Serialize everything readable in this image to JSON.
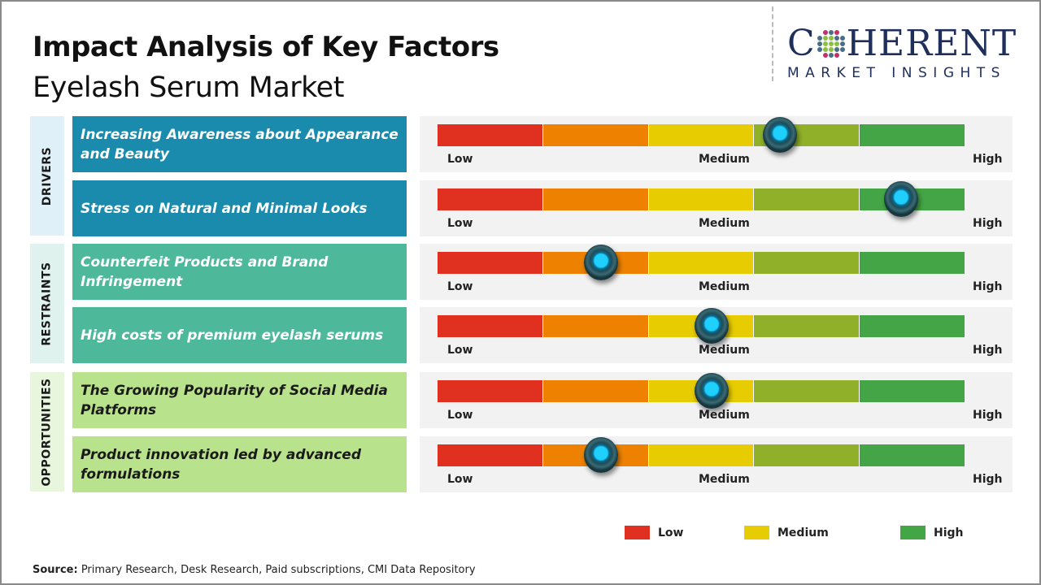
{
  "header": {
    "title": "Impact Analysis of Key Factors",
    "subtitle": "Eyelash Serum Market"
  },
  "logo": {
    "main_left": "C",
    "main_right": "HERENT",
    "sub": "MARKET INSIGHTS"
  },
  "scale_labels": {
    "low": "Low",
    "medium": "Medium",
    "high": "High"
  },
  "scale_colors": [
    "#e03020",
    "#ee8200",
    "#e6cc00",
    "#8fb028",
    "#43a545"
  ],
  "categories": [
    {
      "label": "DRIVERS",
      "color": "#dff0f8"
    },
    {
      "label": "RESTRAINTS",
      "color": "#e0f2ee"
    },
    {
      "label": "OPPORTUNITIES",
      "color": "#e8f6de"
    }
  ],
  "factors": [
    {
      "text": "Increasing Awareness about Appearance and Beauty",
      "category": "DRIVERS",
      "impact": 0.65
    },
    {
      "text": "Stress on Natural and Minimal Looks",
      "category": "DRIVERS",
      "impact": 0.88
    },
    {
      "text": "Counterfeit Products and Brand Infringement",
      "category": "RESTRAINTS",
      "impact": 0.31
    },
    {
      "text": "High costs of premium eyelash serums",
      "category": "RESTRAINTS",
      "impact": 0.52
    },
    {
      "text": "The Growing Popularity of Social Media Platforms",
      "category": "OPPORTUNITIES",
      "impact": 0.52
    },
    {
      "text": "Product innovation led by advanced formulations",
      "category": "OPPORTUNITIES",
      "impact": 0.31
    }
  ],
  "legend": [
    {
      "label": "Low",
      "color": "#e03020"
    },
    {
      "label": "Medium",
      "color": "#e6cc00"
    },
    {
      "label": "High",
      "color": "#43a545"
    }
  ],
  "source": {
    "label": "Source:",
    "text": " Primary Research, Desk Research, Paid subscriptions, CMI Data Repository"
  }
}
